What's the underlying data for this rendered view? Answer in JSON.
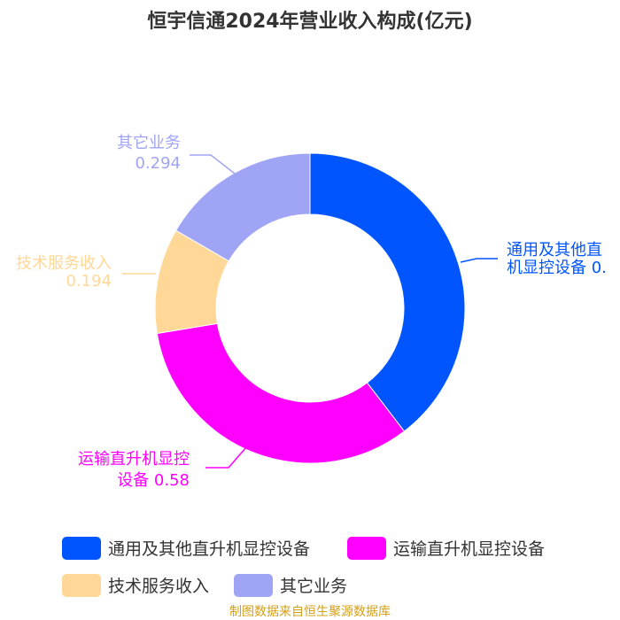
{
  "chart_data": {
    "type": "pie",
    "title": "恒宇信通2024年营业收入构成(亿元)",
    "categories": [
      "通用及其他直升机显控设备",
      "运输直升机显控设备",
      "技术服务收入",
      "其它业务"
    ],
    "values": [
      0.7,
      0.58,
      0.194,
      0.294
    ],
    "slice_labels": [
      [
        "通用及其他直",
        "机显控设备 0."
      ],
      [
        "运输直升机显控",
        "设备 0.58"
      ],
      [
        "技术服务收入",
        "0.194"
      ],
      [
        "其它业务",
        "0.294"
      ]
    ],
    "colors": [
      "#0055ff",
      "#ff00ff",
      "#ffd898",
      "#a0a4f5"
    ],
    "legend": "bottom",
    "source": "制图数据来自恒生聚源数据库"
  }
}
